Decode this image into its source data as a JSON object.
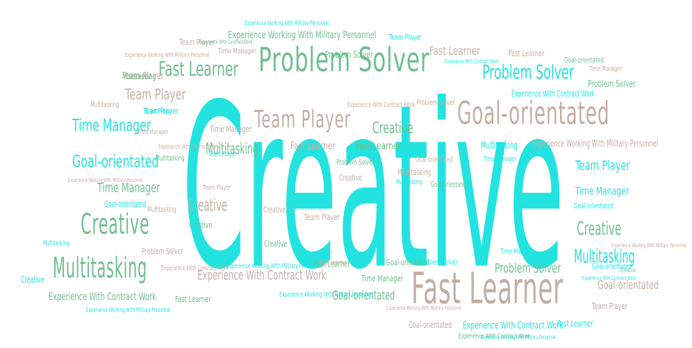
{
  "palette": {
    "cyan": "#22e3e0",
    "green": "#6fbf8e",
    "taupe": "#c4aea3",
    "background": "#ffffff"
  },
  "words": [
    {
      "text": "Creative",
      "color": "cyan"
    },
    {
      "text": "Problem Solver",
      "color": "green"
    },
    {
      "text": "Goal-orientated",
      "color": "taupe"
    },
    {
      "text": "Fast Learner",
      "color": "taupe"
    },
    {
      "text": "Team Player",
      "color": "taupe"
    },
    {
      "text": "Multitasking",
      "color": "green"
    },
    {
      "text": "Creative",
      "color": "green"
    },
    {
      "text": "Fast Learner",
      "color": "green"
    },
    {
      "text": "Problem Solver",
      "color": "cyan"
    },
    {
      "text": "Time Manager",
      "color": "cyan"
    },
    {
      "text": "Goal-orientated",
      "color": "cyan"
    },
    {
      "text": "Team Player",
      "color": "taupe"
    },
    {
      "text": "Creative",
      "color": "green"
    },
    {
      "text": "Multitasking",
      "color": "cyan"
    },
    {
      "text": "Creative",
      "color": "taupe"
    },
    {
      "text": "Multitasking",
      "color": "green"
    },
    {
      "text": "Experience With Contract Work",
      "color": "taupe"
    },
    {
      "text": "Problem Solver",
      "color": "green"
    },
    {
      "text": "Time Manager",
      "color": "green"
    },
    {
      "text": "Team Player",
      "color": "cyan"
    },
    {
      "text": "Time Manager",
      "color": "cyan"
    },
    {
      "text": "Creative",
      "color": "green"
    },
    {
      "text": "Goal-orientated",
      "color": "taupe"
    },
    {
      "text": "Experience With Contract Work",
      "color": "green"
    },
    {
      "text": "Goal-orientated",
      "color": "green"
    },
    {
      "text": "Experience Working With Military Personnel",
      "color": "green"
    },
    {
      "text": "Fast Learner",
      "color": "taupe"
    },
    {
      "text": "Fast Learner",
      "color": "taupe"
    },
    {
      "text": "Fast Learner",
      "color": "green"
    },
    {
      "text": "Team Player",
      "color": "taupe"
    },
    {
      "text": "Creative",
      "color": "cyan"
    },
    {
      "text": "Goal-orientated",
      "color": "cyan"
    },
    {
      "text": "Problem Solver",
      "color": "green"
    },
    {
      "text": "Multitasking",
      "color": "cyan"
    },
    {
      "text": "Experience Working With Military Personnel",
      "color": "taupe"
    },
    {
      "text": "Experience With Contract Work",
      "color": "cyan"
    },
    {
      "text": "Creative",
      "color": "taupe"
    },
    {
      "text": "Creative",
      "color": "taupe"
    },
    {
      "text": "Creative",
      "color": "green"
    },
    {
      "text": "Creative",
      "color": "green"
    },
    {
      "text": "Problem Solver",
      "color": "taupe"
    },
    {
      "text": "Multitasking",
      "color": "cyan"
    },
    {
      "text": "Problem Solver",
      "color": "green"
    },
    {
      "text": "Team Player",
      "color": "taupe"
    },
    {
      "text": "Time Manager",
      "color": "taupe"
    },
    {
      "text": "Goal-orientated",
      "color": "green"
    },
    {
      "text": "Problem Solver",
      "color": "taupe"
    },
    {
      "text": "Team Player",
      "color": "cyan"
    },
    {
      "text": "Fast Learner",
      "color": "taupe"
    },
    {
      "text": "Fast Learner",
      "color": "green"
    },
    {
      "text": "Fast Learner",
      "color": "cyan"
    },
    {
      "text": "Goal-orientated",
      "color": "taupe"
    },
    {
      "text": "Goal-orientated",
      "color": "green"
    },
    {
      "text": "Goal-orientated",
      "color": "cyan"
    },
    {
      "text": "Time Manager",
      "color": "taupe"
    },
    {
      "text": "Time Manager",
      "color": "green"
    },
    {
      "text": "Time Manager",
      "color": "cyan"
    },
    {
      "text": "Team Player",
      "color": "taupe"
    },
    {
      "text": "Team Player",
      "color": "cyan"
    },
    {
      "text": "Team Player",
      "color": "taupe"
    },
    {
      "text": "Multitasking",
      "color": "taupe"
    },
    {
      "text": "Multitasking",
      "color": "cyan"
    },
    {
      "text": "Multitasking",
      "color": "green"
    },
    {
      "text": "Multitasking",
      "color": "taupe"
    },
    {
      "text": "Problem Solver",
      "color": "green"
    },
    {
      "text": "Problem Solver",
      "color": "cyan"
    },
    {
      "text": "Goal-orientated",
      "color": "taupe"
    },
    {
      "text": "Goal-orientated",
      "color": "green"
    },
    {
      "text": "Goal-orientated",
      "color": "cyan"
    },
    {
      "text": "Fast Learner",
      "color": "taupe"
    },
    {
      "text": "Fast Learner",
      "color": "green"
    },
    {
      "text": "Team Player",
      "color": "cyan"
    },
    {
      "text": "Team Player",
      "color": "taupe"
    },
    {
      "text": "Time Manager",
      "color": "cyan"
    },
    {
      "text": "Time Manager",
      "color": "taupe"
    },
    {
      "text": "Experience Working With Military Personnel",
      "color": "cyan"
    },
    {
      "text": "Experience Working With Military Personnel",
      "color": "taupe"
    },
    {
      "text": "Experience Working With Military Personnel",
      "color": "cyan"
    },
    {
      "text": "Experience Working With Military Personnel",
      "color": "taupe"
    },
    {
      "text": "Experience Working With Military Personnel",
      "color": "cyan"
    },
    {
      "text": "Experience With Contract Work",
      "color": "cyan"
    },
    {
      "text": "Experience With Contract Work",
      "color": "taupe"
    },
    {
      "text": "Experience With Contract Work",
      "color": "green"
    },
    {
      "text": "Experience With Contract Work",
      "color": "cyan"
    },
    {
      "text": "Experience With Contract Work",
      "color": "taupe"
    },
    {
      "text": "Experience With Contract Work",
      "color": "cyan"
    },
    {
      "text": "Experience With Contract Work",
      "color": "taupe"
    },
    {
      "text": "Experience With Contract Work",
      "color": "green"
    },
    {
      "text": "Experience Working With Military Personnel",
      "color": "cyan"
    },
    {
      "text": "Experience Working With Military Personnel",
      "color": "taupe"
    },
    {
      "text": "Experience Working With Military Personnel",
      "color": "cyan"
    },
    {
      "text": "Experience Working With Military Personnel",
      "color": "taupe"
    },
    {
      "text": "Creative",
      "color": "green"
    },
    {
      "text": "Creative",
      "color": "taupe"
    },
    {
      "text": "Multitasking",
      "color": "green"
    },
    {
      "text": "Multitasking",
      "color": "taupe"
    },
    {
      "text": "Time Manager",
      "color": "taupe"
    },
    {
      "text": "Team Player",
      "color": "cyan"
    }
  ]
}
